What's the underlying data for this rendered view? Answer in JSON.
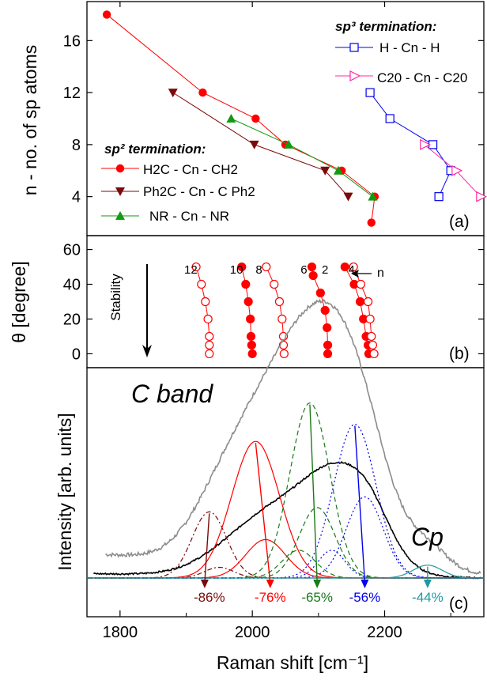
{
  "colors": {
    "frame": "#000000",
    "red": "#ff0000",
    "darkred": "#7b0a0a",
    "green": "#1a7a1a",
    "green_marker": "#129a12",
    "blue": "#0000ee",
    "magenta": "#ff2aa0",
    "teal": "#1c9aa0",
    "gray": "#8c8c8c",
    "black": "#000000"
  },
  "chart_data": [
    {
      "panel": "a",
      "type": "line",
      "panel_label": "(a)",
      "ylabel": "n - no. of sp atoms",
      "ylim": [
        1,
        19
      ],
      "yticks": [
        4,
        8,
        12,
        16
      ],
      "xlim": [
        1750,
        2350
      ],
      "legend_sp3": {
        "title": "sp³ termination:",
        "entries": [
          "H - Cn - H",
          "C20 - Cn - C20"
        ]
      },
      "legend_sp2": {
        "title": "sp² termination:",
        "entries": [
          "H2C - Cn - CH2",
          "Ph2C - Cn - C Ph2",
          "NR - Cn - NR"
        ]
      },
      "series": [
        {
          "legend": "H2C - Cn - CH2",
          "color": "red",
          "marker": "circle-filled",
          "x": [
            1780,
            1925,
            2005,
            2050,
            2135,
            2185,
            2180
          ],
          "y": [
            18,
            12,
            10,
            8,
            6,
            4,
            2
          ]
        },
        {
          "legend": "Ph2C - Cn - C Ph2",
          "color": "darkred",
          "marker": "triangle-down-filled",
          "x": [
            1880,
            2003,
            2110,
            2145
          ],
          "y": [
            12,
            8,
            6,
            4
          ]
        },
        {
          "legend": "NR - Cn - NR",
          "color": "green_marker",
          "marker": "triangle-up-filled",
          "x": [
            1968,
            2055,
            2130,
            2182
          ],
          "y": [
            10,
            8,
            6,
            4
          ]
        },
        {
          "legend": "H - Cn - H",
          "color": "blue",
          "marker": "square-open",
          "x": [
            2178,
            2208,
            2273,
            2300,
            2282
          ],
          "y": [
            12,
            10,
            8,
            6,
            4
          ]
        },
        {
          "legend": "C20 - Cn - C20",
          "color": "magenta",
          "marker": "triangle-right-open",
          "x": [
            2260,
            2308,
            2345
          ],
          "y": [
            8,
            6,
            4
          ]
        }
      ]
    },
    {
      "panel": "b",
      "type": "scatter",
      "panel_label": "(b)",
      "ylabel": "θ [degree]",
      "ylim": [
        -8,
        68
      ],
      "yticks": [
        0,
        20,
        40,
        60
      ],
      "xlim": [
        1750,
        2350
      ],
      "stability_label": "Stability",
      "n_axis_label": "n",
      "column_labels": [
        "12",
        "10",
        "8",
        "6",
        "2",
        "4"
      ],
      "columns": [
        {
          "n": "12",
          "filled": false,
          "theta": [
            50,
            40,
            30,
            20,
            10,
            5,
            0
          ],
          "x": [
            1915,
            1923,
            1929,
            1933,
            1935,
            1935,
            1935
          ]
        },
        {
          "n": "10",
          "filled": true,
          "theta": [
            50,
            40,
            30,
            20,
            10,
            5,
            0
          ],
          "x": [
            1984,
            1990,
            1994,
            1997,
            1998,
            1999,
            2000
          ]
        },
        {
          "n": "8",
          "filled": false,
          "theta": [
            50,
            40,
            30,
            20,
            10,
            5,
            0
          ],
          "x": [
            2021,
            2033,
            2041,
            2045,
            2047,
            2047,
            2048
          ]
        },
        {
          "n": "6",
          "filled": true,
          "theta": [
            50,
            45,
            35,
            25,
            15,
            5,
            0
          ],
          "x": [
            2090,
            2092,
            2103,
            2110,
            2113,
            2114,
            2114
          ]
        },
        {
          "n": "2",
          "filled": true,
          "theta": [
            50,
            40,
            30,
            20,
            10,
            5,
            0
          ],
          "x": [
            2140,
            2154,
            2163,
            2168,
            2172,
            2175,
            2176
          ]
        },
        {
          "n": "4",
          "filled": false,
          "theta": [
            50,
            40,
            30,
            20,
            10,
            5,
            0
          ],
          "x": [
            2153,
            2164,
            2175,
            2178,
            2180,
            2182,
            2184
          ]
        }
      ]
    },
    {
      "panel": "c",
      "type": "line",
      "panel_label": "(c)",
      "ylabel": "Intensity [arb. units]",
      "xlabel": "Raman shift [cm⁻¹]",
      "xlim": [
        1750,
        2350
      ],
      "xticks": [
        1800,
        2000,
        2200
      ],
      "annotation_band": "C band",
      "annotation_cp": "Cp",
      "gaussians": [
        {
          "color": "darkred",
          "dash": "6,3,2,3",
          "center": 1935,
          "sigma": 26,
          "amp": 0.31
        },
        {
          "color": "darkred",
          "dash": "6,3,2,3",
          "center": 1950,
          "sigma": 22,
          "amp": 0.05
        },
        {
          "color": "red",
          "dash": "",
          "center": 2005,
          "sigma": 36,
          "amp": 0.64
        },
        {
          "color": "red",
          "dash": "",
          "center": 2020,
          "sigma": 30,
          "amp": 0.18
        },
        {
          "color": "green",
          "dash": "6,4",
          "center": 2087,
          "sigma": 30,
          "amp": 0.82
        },
        {
          "color": "green",
          "dash": "6,4",
          "center": 2070,
          "sigma": 25,
          "amp": 0.13
        },
        {
          "color": "green",
          "dash": "6,4",
          "center": 2098,
          "sigma": 27,
          "amp": 0.33
        },
        {
          "color": "blue",
          "dash": "2,3",
          "center": 2155,
          "sigma": 32,
          "amp": 0.72
        },
        {
          "color": "blue",
          "dash": "2,3",
          "center": 2120,
          "sigma": 20,
          "amp": 0.13
        },
        {
          "color": "blue",
          "dash": "2,3",
          "center": 2170,
          "sigma": 28,
          "amp": 0.38
        },
        {
          "color": "teal",
          "dash": "",
          "center": 2265,
          "sigma": 22,
          "amp": 0.06
        }
      ],
      "black_sum": {
        "peaks": [
          {
            "c": 1950,
            "s": 50,
            "a": 0.05
          },
          {
            "c": 2025,
            "s": 55,
            "a": 0.24
          },
          {
            "c": 2130,
            "s": 55,
            "a": 0.47
          },
          {
            "c": 2180,
            "s": 30,
            "a": 0.1
          }
        ],
        "baseline": 0.02
      },
      "gray_spectrum": {
        "start": 1778,
        "end": 2345,
        "peaks": [
          {
            "c": 1945,
            "s": 45,
            "a": 0.12
          },
          {
            "c": 2010,
            "s": 60,
            "a": 0.52
          },
          {
            "c": 2105,
            "s": 60,
            "a": 0.95
          },
          {
            "c": 2165,
            "s": 45,
            "a": 0.34
          },
          {
            "c": 2265,
            "s": 30,
            "a": 0.1
          }
        ],
        "baseline": 0.15
      },
      "percent_labels": [
        {
          "text": "-86%",
          "x": 1935,
          "color": "darkred"
        },
        {
          "text": "-76%",
          "x": 2027,
          "color": "red"
        },
        {
          "text": "-65%",
          "x": 2098,
          "color": "green"
        },
        {
          "text": "-56%",
          "x": 2170,
          "color": "blue"
        },
        {
          "text": "-44%",
          "x": 2265,
          "color": "teal"
        }
      ],
      "shift_arrows": [
        {
          "color": "darkred",
          "from": 1935,
          "to": 1928
        },
        {
          "color": "red",
          "from": 2005,
          "to": 2027
        },
        {
          "color": "green",
          "from": 2087,
          "to": 2098
        },
        {
          "color": "blue",
          "from": 2155,
          "to": 2170
        },
        {
          "color": "teal",
          "from": 2265,
          "to": 2265
        }
      ]
    }
  ]
}
